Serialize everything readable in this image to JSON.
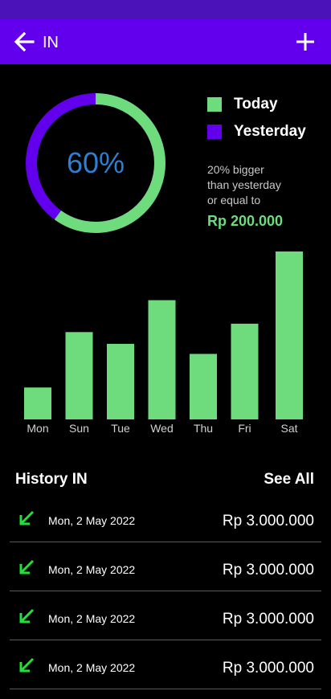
{
  "app_bar": {
    "title": "IN",
    "back_icon": "arrow-left-icon",
    "add_icon": "plus-icon",
    "color": "#6200ee",
    "status_bar_color": "#4a12b8"
  },
  "summary": {
    "percent_label": "60%",
    "today_fraction": 0.6,
    "legend": [
      {
        "label": "Today",
        "color": "#6edb7c"
      },
      {
        "label": "Yesterday",
        "color": "#6200ee"
      }
    ],
    "compare_lines": [
      "20% bigger",
      "than yesterday",
      "or equal to"
    ],
    "compare_amount": "Rp 200.000"
  },
  "chart_data": {
    "type": "bar",
    "categories": [
      "Mon",
      "Sun",
      "Tue",
      "Wed",
      "Thu",
      "Fri",
      "Sat"
    ],
    "values": [
      19,
      52,
      45,
      71,
      39,
      57,
      100
    ],
    "ylim": [
      0,
      100
    ],
    "grid": false,
    "bar_color": "#6edb7c",
    "title": "",
    "xlabel": "",
    "ylabel": ""
  },
  "history": {
    "title": "History IN",
    "see_all_label": "See All",
    "row_icon": "arrow-down-left-icon",
    "row_icon_color": "#22e03a",
    "items": [
      {
        "date": "Mon, 2 May 2022",
        "amount": "Rp 3.000.000"
      },
      {
        "date": "Mon, 2 May 2022",
        "amount": "Rp 3.000.000"
      },
      {
        "date": "Mon, 2 May 2022",
        "amount": "Rp 3.000.000"
      },
      {
        "date": "Mon, 2 May 2022",
        "amount": "Rp 3.000.000"
      }
    ]
  }
}
